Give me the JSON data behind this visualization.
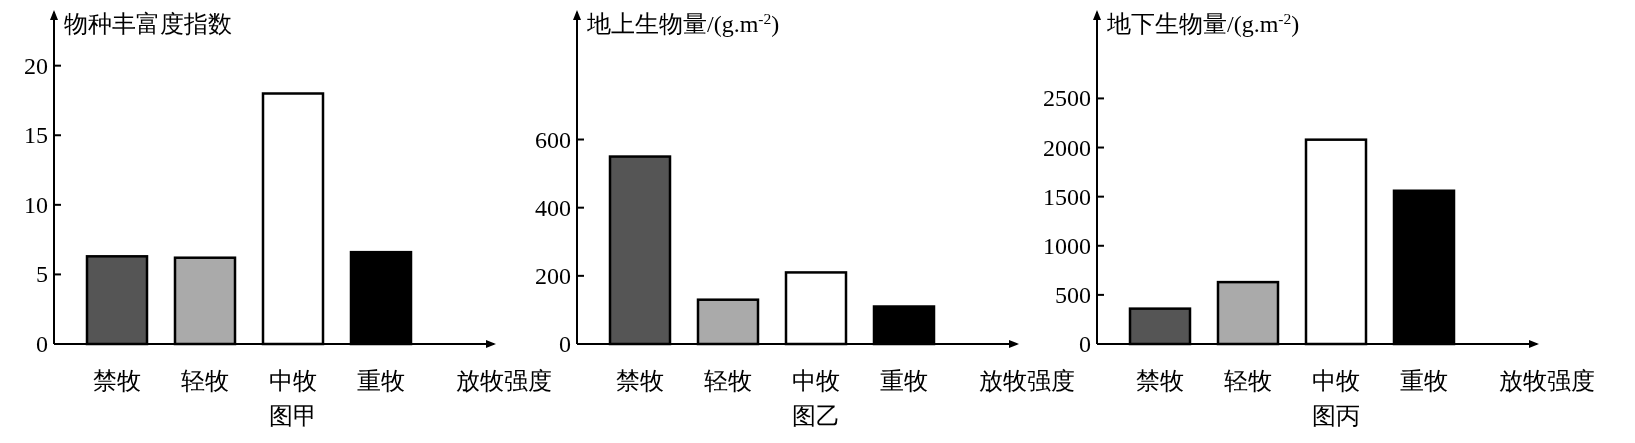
{
  "chart_data": [
    {
      "type": "bar",
      "ylabel": "物种丰富度指数",
      "xlabel": "放牧强度",
      "annotations": [
        "图甲"
      ],
      "categories": [
        "禁牧",
        "轻牧",
        "中牧",
        "重牧"
      ],
      "values": [
        6.3,
        6.2,
        18,
        6.6
      ],
      "colors": [
        "#555555",
        "#aaaaaa",
        "#ffffff",
        "#000000"
      ],
      "ylim": [
        0,
        24
      ],
      "yticks": [
        0,
        5,
        10,
        15,
        20
      ]
    },
    {
      "type": "bar",
      "ylabel": "地上生物量/(g.m$^{-2}$)",
      "xlabel": "放牧强度",
      "annotations": [
        "图乙"
      ],
      "categories": [
        "禁牧",
        "轻牧",
        "中牧",
        "重牧"
      ],
      "values": [
        550,
        130,
        210,
        110
      ],
      "colors": [
        "#555555",
        "#aaaaaa",
        "#ffffff",
        "#000000"
      ],
      "ylim": [
        0,
        980
      ],
      "yticks": [
        0,
        200,
        400,
        600
      ]
    },
    {
      "type": "bar",
      "ylabel": "地下生物量/(g.m$^{-2}$)",
      "xlabel": "放牧强度",
      "annotations": [
        "图丙"
      ],
      "categories": [
        "禁牧",
        "轻牧",
        "中牧",
        "重牧"
      ],
      "values": [
        360,
        630,
        2080,
        1560
      ],
      "colors": [
        "#555555",
        "#aaaaaa",
        "#ffffff",
        "#000000"
      ],
      "ylim": [
        0,
        3400
      ],
      "yticks": [
        0,
        500,
        1000,
        1500,
        2000,
        2500
      ]
    }
  ]
}
